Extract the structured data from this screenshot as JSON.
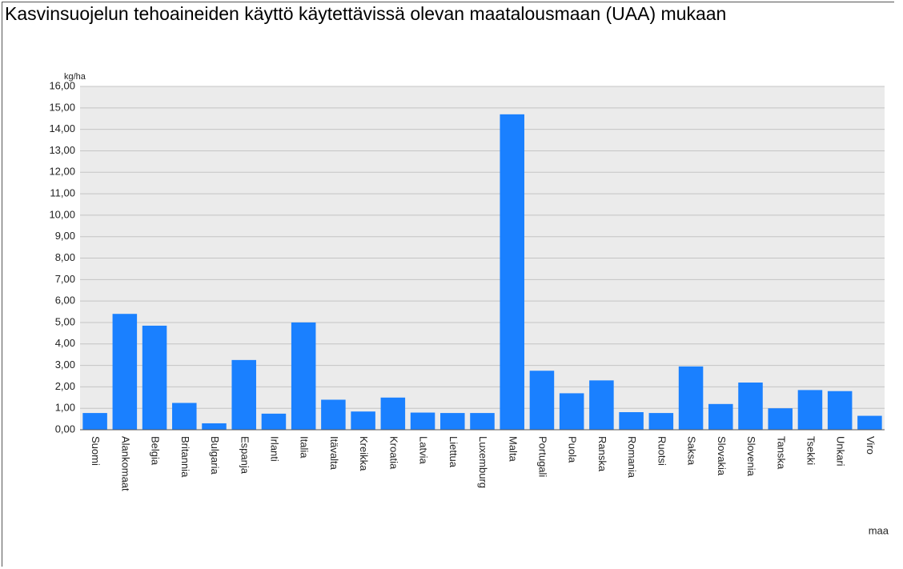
{
  "chart_data": {
    "type": "bar",
    "title": "Kasvinsuojelun tehoaineiden käyttö käytettävissä olevan maatalousmaan (UAA) mukaan",
    "y_label": "kg/ha",
    "x_label": "maa",
    "categories": [
      "Suomi",
      "Alankomaat",
      "Belgia",
      "Britannia",
      "Bulgaria",
      "Espanja",
      "Irlanti",
      "Italia",
      "Itävalta",
      "Kreikka",
      "Kroatia",
      "Latvia",
      "Liettua",
      "Luxemburg",
      "Malta",
      "Portugali",
      "Puola",
      "Ranska",
      "Romania",
      "Ruotsi",
      "Saksa",
      "Slovakia",
      "Slovenia",
      "Tanska",
      "Tsekki",
      "Unkari",
      "Viro"
    ],
    "values": [
      0.78,
      5.4,
      4.85,
      1.25,
      0.3,
      3.25,
      0.75,
      5.0,
      1.4,
      0.85,
      1.5,
      0.8,
      0.78,
      0.78,
      14.7,
      2.75,
      1.7,
      2.3,
      0.82,
      0.78,
      2.95,
      1.2,
      2.2,
      1.0,
      1.85,
      1.8,
      0.65
    ],
    "color": "#1a80ff",
    "ylim": [
      0,
      16
    ],
    "yticks": [
      {
        "value": 0,
        "label": "0,00"
      },
      {
        "value": 1,
        "label": "1,00"
      },
      {
        "value": 2,
        "label": "2,00"
      },
      {
        "value": 3,
        "label": "3,00"
      },
      {
        "value": 4,
        "label": "4,00"
      },
      {
        "value": 5,
        "label": "5,00"
      },
      {
        "value": 6,
        "label": "6,00"
      },
      {
        "value": 7,
        "label": "7,00"
      },
      {
        "value": 8,
        "label": "8,00"
      },
      {
        "value": 9,
        "label": "9,00"
      },
      {
        "value": 10,
        "label": "10,00"
      },
      {
        "value": 11,
        "label": "11,00"
      },
      {
        "value": 12,
        "label": "12,00"
      },
      {
        "value": 13,
        "label": "13,00"
      },
      {
        "value": 14,
        "label": "14,00"
      },
      {
        "value": 15,
        "label": "15,00"
      },
      {
        "value": 16,
        "label": "16,00"
      }
    ],
    "grid": true
  }
}
